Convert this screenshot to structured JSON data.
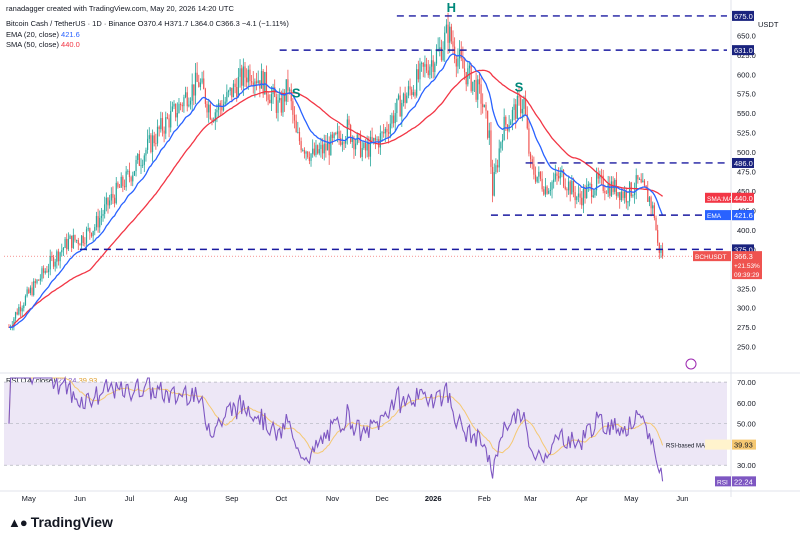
{
  "header": {
    "byline": "ranadagger created with TradingView.com, May 20, 2026 14:20 UTC",
    "symbol_title": "Bitcoin Cash / TetherUS · 1D · Binance",
    "ohlc": "O370.4 H371.7 L364.0 C366.3 −4.1 (−1.11%)",
    "ema_label": "EMA (20, close)",
    "ema_value": "421.6",
    "sma_label": "SMA (50, close)",
    "sma_value": "440.0",
    "currency": "USDT"
  },
  "rsi_header": {
    "label": "RSI (14, close)",
    "v1": "22.24",
    "v2": "39.93"
  },
  "branding": {
    "logo_text": "TradingView"
  },
  "colors": {
    "up": "#26a69a",
    "down": "#ef5350",
    "ema": "#2962ff",
    "sma": "#f23645",
    "rsi_line": "#7e57c2",
    "rsi_ma": "#f5c872",
    "band_fill": "#ede7f6",
    "levels": "#1a1aa0",
    "pattern_text": "#00897b"
  },
  "chart_data": {
    "type": "candlestick",
    "symbol": "BCHUSDT",
    "interval": "1D",
    "price_axis": {
      "ylim": [
        220,
        680
      ],
      "ticks": [
        250,
        275,
        300,
        325,
        350,
        375,
        400,
        425,
        450,
        475,
        500,
        525,
        550,
        575,
        600,
        625,
        650
      ]
    },
    "x_axis": {
      "labels": [
        "May",
        "Jun",
        "Jul",
        "Aug",
        "Sep",
        "Oct",
        "Nov",
        "Dec",
        "2026",
        "Feb",
        "Mar",
        "Apr",
        "May",
        "Jun"
      ]
    },
    "price_path": [
      [
        "2025-04-19",
        275
      ],
      [
        "2025-04-25",
        300
      ],
      [
        "2025-05-05",
        330
      ],
      [
        "2025-05-15",
        360
      ],
      [
        "2025-05-25",
        385
      ],
      [
        "2025-06-01",
        388
      ],
      [
        "2025-06-10",
        405
      ],
      [
        "2025-06-20",
        440
      ],
      [
        "2025-07-01",
        470
      ],
      [
        "2025-07-10",
        500
      ],
      [
        "2025-07-20",
        530
      ],
      [
        "2025-07-30",
        555
      ],
      [
        "2025-08-05",
        575
      ],
      [
        "2025-08-12",
        590
      ],
      [
        "2025-08-20",
        550
      ],
      [
        "2025-08-28",
        565
      ],
      [
        "2025-09-05",
        590
      ],
      [
        "2025-09-12",
        605
      ],
      [
        "2025-09-20",
        590
      ],
      [
        "2025-09-30",
        555
      ],
      [
        "2025-10-05",
        585
      ],
      [
        "2025-10-10",
        520
      ],
      [
        "2025-10-20",
        495
      ],
      [
        "2025-11-01",
        510
      ],
      [
        "2025-11-10",
        530
      ],
      [
        "2025-11-20",
        500
      ],
      [
        "2025-12-01",
        520
      ],
      [
        "2025-12-10",
        555
      ],
      [
        "2025-12-20",
        585
      ],
      [
        "2025-12-28",
        610
      ],
      [
        "2026-01-05",
        630
      ],
      [
        "2026-01-10",
        655
      ],
      [
        "2026-01-18",
        610
      ],
      [
        "2026-01-25",
        590
      ],
      [
        "2026-01-30",
        570
      ],
      [
        "2026-02-04",
        520
      ],
      [
        "2026-02-06",
        450
      ],
      [
        "2026-02-12",
        530
      ],
      [
        "2026-02-20",
        555
      ],
      [
        "2026-02-25",
        565
      ],
      [
        "2026-03-01",
        480
      ],
      [
        "2026-03-10",
        455
      ],
      [
        "2026-03-20",
        470
      ],
      [
        "2026-03-30",
        440
      ],
      [
        "2026-04-10",
        460
      ],
      [
        "2026-04-20",
        455
      ],
      [
        "2026-04-28",
        445
      ],
      [
        "2026-05-05",
        460
      ],
      [
        "2026-05-12",
        440
      ],
      [
        "2026-05-15",
        420
      ],
      [
        "2026-05-17",
        380
      ],
      [
        "2026-05-20",
        366.3
      ]
    ],
    "ema20": {
      "name": "EMA (20, close)",
      "last": 421.6
    },
    "sma50": {
      "name": "SMA (50, close)",
      "last": 440.0
    },
    "horizontal_levels": [
      {
        "label": "675.0",
        "value": 675
      },
      {
        "label": "631.0",
        "value": 631
      },
      {
        "label": "486.0",
        "value": 486
      },
      {
        "label": "419.0",
        "value": 419
      },
      {
        "label": "375.0",
        "value": 375
      }
    ],
    "pattern_labels": [
      "S",
      "H",
      "S"
    ],
    "last_price_tag": {
      "symbol": "BCHUSDT",
      "price": "366.3",
      "change": "+21.53%",
      "countdown": "09:39:29"
    },
    "axis_tags": [
      {
        "label": "SMA:MA",
        "value": "440.0"
      },
      {
        "label": "EMA",
        "value": "421.6"
      }
    ],
    "rsi": {
      "ylim": [
        20,
        72
      ],
      "ticks": [
        30,
        40,
        50,
        60,
        70
      ],
      "tick_labels": [
        "30.00",
        "40.00",
        "50.00",
        "60.00",
        "70.00"
      ],
      "band": [
        30,
        70
      ],
      "last_rsi": "22.24",
      "last_ma": "39.93",
      "tags": [
        {
          "label": "RSI-based MA",
          "value": "39.93"
        },
        {
          "label": "RSI",
          "value": "22.24"
        }
      ]
    }
  }
}
